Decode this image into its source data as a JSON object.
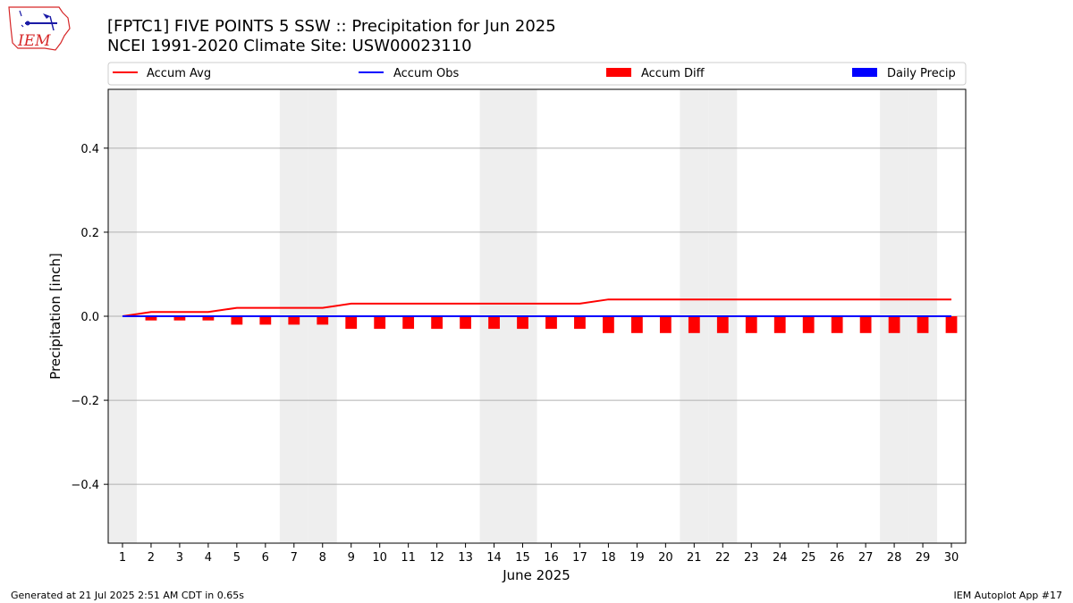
{
  "header": {
    "title_line1": "[FPTC1] FIVE POINTS 5 SSW :: Precipitation for Jun 2025",
    "title_line2": "NCEI 1991-2020 Climate Site: USW00023110"
  },
  "logo": {
    "text": "IEM"
  },
  "legend": [
    {
      "label": "Accum Avg",
      "kind": "line",
      "color": "#ff0000"
    },
    {
      "label": "Accum Obs",
      "kind": "line",
      "color": "#0000ff"
    },
    {
      "label": "Accum Diff",
      "kind": "bar",
      "color": "#ff0000"
    },
    {
      "label": "Daily Precip",
      "kind": "bar",
      "color": "#0000ff"
    }
  ],
  "footer": {
    "generated": "Generated at 21 Jul 2025 2:51 AM CDT in 0.65s",
    "app": "IEM Autoplot App #17"
  },
  "chart_data": {
    "type": "line",
    "xlabel": "June 2025",
    "ylabel": "Precipitation [inch]",
    "x": [
      1,
      2,
      3,
      4,
      5,
      6,
      7,
      8,
      9,
      10,
      11,
      12,
      13,
      14,
      15,
      16,
      17,
      18,
      19,
      20,
      21,
      22,
      23,
      24,
      25,
      26,
      27,
      28,
      29,
      30
    ],
    "xlim": [
      0.5,
      30.5
    ],
    "ylim": [
      -0.54,
      0.54
    ],
    "yticks": [
      -0.4,
      -0.2,
      0.0,
      0.2,
      0.4
    ],
    "ytick_labels": [
      "−0.4",
      "−0.2",
      "0.0",
      "0.2",
      "0.4"
    ],
    "grid": "horizontal",
    "legend_position": "top",
    "weekend_shading_days": [
      1,
      7,
      8,
      14,
      15,
      21,
      22,
      28,
      29
    ],
    "series": [
      {
        "name": "Accum Avg",
        "kind": "line",
        "color": "#ff0000",
        "values": [
          0.0,
          0.01,
          0.01,
          0.01,
          0.02,
          0.02,
          0.02,
          0.02,
          0.03,
          0.03,
          0.03,
          0.03,
          0.03,
          0.03,
          0.03,
          0.03,
          0.03,
          0.04,
          0.04,
          0.04,
          0.04,
          0.04,
          0.04,
          0.04,
          0.04,
          0.04,
          0.04,
          0.04,
          0.04,
          0.04
        ]
      },
      {
        "name": "Accum Obs",
        "kind": "line",
        "color": "#0000ff",
        "values": [
          0,
          0,
          0,
          0,
          0,
          0,
          0,
          0,
          0,
          0,
          0,
          0,
          0,
          0,
          0,
          0,
          0,
          0,
          0,
          0,
          0,
          0,
          0,
          0,
          0,
          0,
          0,
          0,
          0,
          0
        ]
      },
      {
        "name": "Accum Diff",
        "kind": "bar",
        "color": "#ff0000",
        "values": [
          0.0,
          -0.01,
          -0.01,
          -0.01,
          -0.02,
          -0.02,
          -0.02,
          -0.02,
          -0.03,
          -0.03,
          -0.03,
          -0.03,
          -0.03,
          -0.03,
          -0.03,
          -0.03,
          -0.03,
          -0.04,
          -0.04,
          -0.04,
          -0.04,
          -0.04,
          -0.04,
          -0.04,
          -0.04,
          -0.04,
          -0.04,
          -0.04,
          -0.04,
          -0.04
        ]
      },
      {
        "name": "Daily Precip",
        "kind": "bar",
        "color": "#0000ff",
        "values": [
          0,
          0,
          0,
          0,
          0,
          0,
          0,
          0,
          0,
          0,
          0,
          0,
          0,
          0,
          0,
          0,
          0,
          0,
          0,
          0,
          0,
          0,
          0,
          0,
          0,
          0,
          0,
          0,
          0,
          0
        ]
      }
    ]
  }
}
